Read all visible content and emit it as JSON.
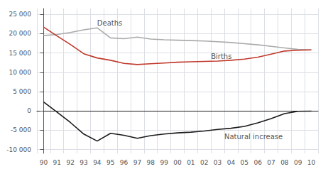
{
  "chart_data": {
    "type": "line",
    "categories": [
      "90",
      "91",
      "92",
      "93",
      "94",
      "95",
      "96",
      "97",
      "98",
      "99",
      "00",
      "01",
      "02",
      "03",
      "04",
      "05",
      "06",
      "07",
      "08",
      "09",
      "10"
    ],
    "series": [
      {
        "color": "#aaaaaa",
        "values": [
          19500,
          19800,
          20300,
          21000,
          21500,
          18900,
          18700,
          19100,
          18600,
          18400,
          18300,
          18200,
          18100,
          17900,
          17700,
          17400,
          17100,
          16700,
          16300,
          15900,
          15800
        ]
      },
      {
        "color": "#c0392b",
        "values": [
          21700,
          19400,
          17200,
          14800,
          13700,
          13100,
          12300,
          12000,
          12200,
          12400,
          12600,
          12700,
          12800,
          12900,
          13100,
          13400,
          13900,
          14700,
          15500,
          15700,
          15800
        ]
      },
      {
        "color": "#1a1a1a",
        "values": [
          2300,
          -300,
          -3000,
          -6000,
          -7800,
          -5800,
          -6300,
          -7100,
          -6400,
          -6000,
          -5700,
          -5500,
          -5200,
          -4800,
          -4500,
          -4000,
          -3100,
          -2000,
          -700,
          -100,
          -50
        ]
      }
    ],
    "ylim": [
      -11000,
      26500
    ],
    "yticks": [
      {
        "value": -10000,
        "label": "-10 000"
      },
      {
        "value": -5000,
        "label": "-5 000"
      },
      0,
      {
        "value": 5000,
        "label": "5 000"
      },
      {
        "value": 10000,
        "label": "10 000"
      },
      {
        "value": 15000,
        "label": "15 000"
      },
      {
        "value": 20000,
        "label": "20 000"
      },
      {
        "value": 25000,
        "label": "25 000"
      }
    ],
    "grid": true,
    "annotations": [
      {
        "text": "Deaths",
        "x": 4,
        "y": 21800
      },
      {
        "text": "Births",
        "x": 12.5,
        "y": 13200
      },
      {
        "text": "Natural increase",
        "x": 13.5,
        "y": -5800
      }
    ]
  }
}
